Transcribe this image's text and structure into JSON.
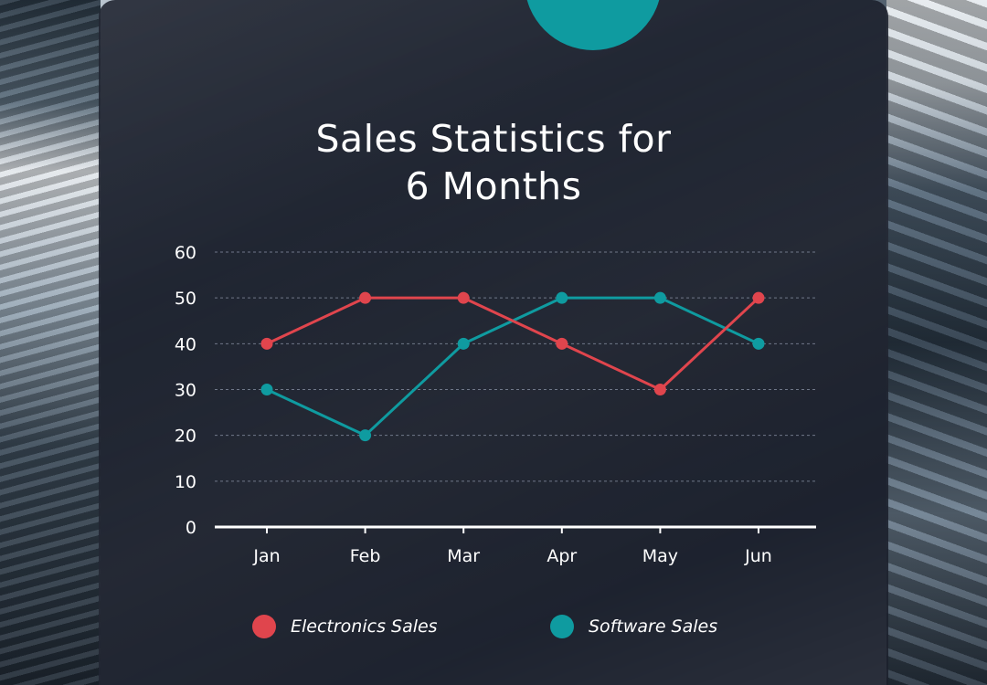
{
  "chart_data": {
    "type": "line",
    "title": "Sales Statistics for 6 Months",
    "title_lines": [
      "Sales Statistics for",
      "6 Months"
    ],
    "categories": [
      "Jan",
      "Feb",
      "Mar",
      "Apr",
      "May",
      "Jun"
    ],
    "series": [
      {
        "name": "Electronics Sales",
        "color": "#e0454d",
        "values": [
          40,
          50,
          50,
          40,
          30,
          50
        ]
      },
      {
        "name": "Software Sales",
        "color": "#0f9ba0",
        "values": [
          30,
          20,
          40,
          50,
          50,
          40
        ]
      }
    ],
    "yticks": [
      0,
      10,
      20,
      30,
      40,
      50,
      60
    ],
    "ylim": [
      0,
      60
    ],
    "xlabel": "",
    "ylabel": "",
    "grid": true,
    "legend_position": "bottom"
  },
  "colors": {
    "accent": "#0f9ba0",
    "electronics": "#e0454d",
    "software": "#0f9ba0",
    "card_background": "#1c202c",
    "text": "#ffffff"
  }
}
